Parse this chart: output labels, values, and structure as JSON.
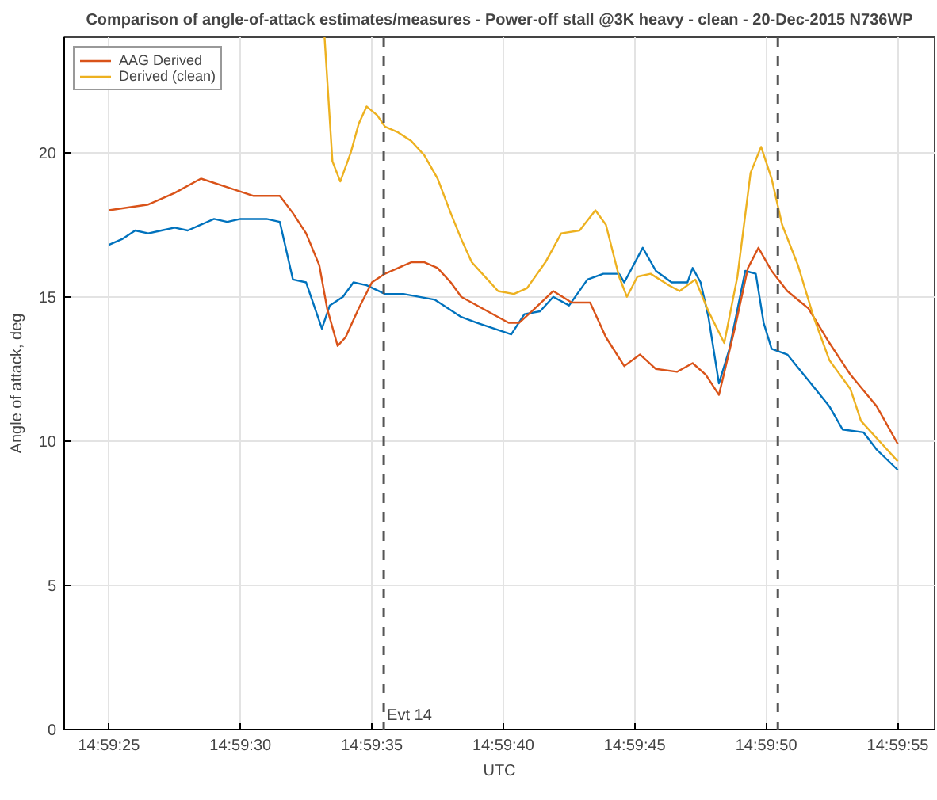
{
  "chart_data": {
    "type": "line",
    "title": "Comparison of angle-of-attack estimates/measures - Power-off stall @3K heavy - clean - 20-Dec-2015 N736WP",
    "xlabel": "UTC",
    "ylabel": "Angle of attack, deg",
    "xlim": [
      14.989806,
      14.999
    ],
    "ylim": [
      0,
      24
    ],
    "xticks": [
      {
        "value": 14.990278,
        "label": "14:59:25"
      },
      {
        "value": 14.991667,
        "label": "14:59:30"
      },
      {
        "value": 14.993056,
        "label": "14:59:35"
      },
      {
        "value": 14.994444,
        "label": "14:59:40"
      },
      {
        "value": 14.995833,
        "label": "14:59:45"
      },
      {
        "value": 14.997222,
        "label": "14:59:50"
      },
      {
        "value": 14.998611,
        "label": "14:59:55"
      }
    ],
    "yticks": [
      0,
      5,
      10,
      15,
      20
    ],
    "grid": true,
    "legend": "top left",
    "line_style": "solid",
    "ref_lines": [
      {
        "axis": "x",
        "value": 14.993181,
        "label": "Evt 14",
        "color": "#555555",
        "line_style": "dashed"
      },
      {
        "axis": "x",
        "value": 14.997344,
        "label": null,
        "color": "#555555",
        "line_style": "dashed"
      }
    ],
    "series": [
      {
        "name": null,
        "color": "#0072bd",
        "x": [
          14.990278,
          14.990417,
          14.990556,
          14.990694,
          14.990833,
          14.990972,
          14.991111,
          14.99125,
          14.991389,
          14.991528,
          14.991667,
          14.991944,
          14.992083,
          14.992222,
          14.992361,
          14.992528,
          14.992611,
          14.99275,
          14.992861,
          14.993,
          14.993194,
          14.993389,
          14.993722,
          14.994,
          14.994167,
          14.994528,
          14.994667,
          14.994833,
          14.994972,
          14.995139,
          14.995333,
          14.9955,
          14.995667,
          14.995722,
          14.995917,
          14.996056,
          14.996222,
          14.996389,
          14.996444,
          14.996528,
          14.996611,
          14.996722,
          14.996833,
          14.997,
          14.997111,
          14.997194,
          14.997278,
          14.997444,
          14.997667,
          14.997889,
          14.998028,
          14.99825,
          14.998389,
          14.998611
        ],
        "values": [
          16.8,
          17.0,
          17.3,
          17.2,
          17.3,
          17.4,
          17.3,
          17.5,
          17.7,
          17.6,
          17.7,
          17.7,
          17.6,
          15.6,
          15.5,
          13.9,
          14.7,
          15.0,
          15.5,
          15.4,
          15.1,
          15.1,
          14.9,
          14.3,
          14.1,
          13.7,
          14.4,
          14.5,
          15.0,
          14.7,
          15.6,
          15.8,
          15.8,
          15.5,
          16.7,
          15.9,
          15.5,
          15.5,
          16.0,
          15.5,
          14.3,
          12.0,
          13.2,
          15.9,
          15.8,
          14.1,
          13.2,
          13.0,
          12.1,
          11.2,
          10.4,
          10.3,
          9.7,
          9.0
        ]
      },
      {
        "name": "AAG Derived",
        "color": "#d95319",
        "x": [
          14.990278,
          14.990694,
          14.990972,
          14.99125,
          14.991528,
          14.991806,
          14.992083,
          14.992222,
          14.992361,
          14.9925,
          14.992583,
          14.992694,
          14.992778,
          14.992917,
          14.993056,
          14.993194,
          14.993333,
          14.993472,
          14.993611,
          14.99375,
          14.993889,
          14.994,
          14.994278,
          14.9945,
          14.994611,
          14.994778,
          14.994972,
          14.995167,
          14.995361,
          14.995528,
          14.995722,
          14.995889,
          14.996056,
          14.996278,
          14.996444,
          14.996583,
          14.996722,
          14.996889,
          14.997028,
          14.997139,
          14.997278,
          14.997444,
          14.997667,
          14.997889,
          14.998111,
          14.998389,
          14.998611
        ],
        "values": [
          18.0,
          18.2,
          18.6,
          19.1,
          18.8,
          18.5,
          18.5,
          17.9,
          17.2,
          16.1,
          14.6,
          13.3,
          13.6,
          14.6,
          15.5,
          15.8,
          16.0,
          16.2,
          16.2,
          16.0,
          15.5,
          15.0,
          14.5,
          14.1,
          14.1,
          14.6,
          15.2,
          14.8,
          14.8,
          13.6,
          12.6,
          13.0,
          12.5,
          12.4,
          12.7,
          12.3,
          11.6,
          13.9,
          16.0,
          16.7,
          15.9,
          15.2,
          14.6,
          13.4,
          12.3,
          11.2,
          9.9
        ]
      },
      {
        "name": "Derived (clean)",
        "color": "#edb120",
        "x": [
          14.992556,
          14.992639,
          14.992722,
          14.992833,
          14.992917,
          14.993,
          14.993111,
          14.993194,
          14.993333,
          14.993472,
          14.993611,
          14.99375,
          14.993889,
          14.994,
          14.994111,
          14.994167,
          14.994389,
          14.994556,
          14.994694,
          14.994889,
          14.995056,
          14.99525,
          14.995417,
          14.995528,
          14.995667,
          14.99575,
          14.995861,
          14.996,
          14.996194,
          14.996306,
          14.996472,
          14.996611,
          14.996778,
          14.996917,
          14.997056,
          14.997167,
          14.997278,
          14.997389,
          14.997556,
          14.997722,
          14.997889,
          14.998111,
          14.998222,
          14.998444,
          14.998611
        ],
        "values": [
          24.0,
          19.7,
          19.0,
          20.0,
          21.0,
          21.6,
          21.3,
          20.9,
          20.7,
          20.4,
          19.9,
          19.1,
          17.9,
          17.0,
          16.2,
          16.0,
          15.2,
          15.1,
          15.3,
          16.2,
          17.2,
          17.3,
          18.0,
          17.5,
          15.7,
          15.0,
          15.7,
          15.8,
          15.4,
          15.2,
          15.6,
          14.5,
          13.4,
          15.7,
          19.3,
          20.2,
          19.1,
          17.5,
          16.1,
          14.3,
          12.8,
          11.8,
          10.7,
          9.9,
          9.3
        ]
      }
    ]
  }
}
